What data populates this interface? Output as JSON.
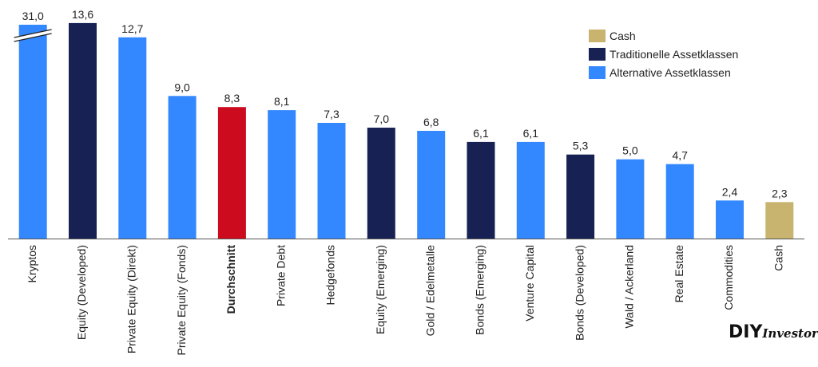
{
  "chart_data": {
    "type": "bar",
    "title": "",
    "xlabel": "",
    "ylabel": "",
    "ylim": [
      0,
      14.3
    ],
    "axis_break_on": "Kryptos",
    "categories": [
      "Kryptos",
      "Equity (Developed)",
      "Private Equity (Direkt)",
      "Private Equity (Fonds)",
      "Durchschnitt",
      "Private Debt",
      "Hedgefonds",
      "Equity (Emerging)",
      "Gold / Edelmetalle",
      "Bonds (Emerging)",
      "Venture Capital",
      "Bonds (Developed)",
      "Wald / Ackerland",
      "Real Estate",
      "Commodities",
      "Cash"
    ],
    "values": [
      31.0,
      13.6,
      12.7,
      9.0,
      8.3,
      8.1,
      7.3,
      7.0,
      6.8,
      6.1,
      6.1,
      5.3,
      5.0,
      4.7,
      2.4,
      2.3
    ],
    "value_labels": [
      "31,0",
      "13,6",
      "12,7",
      "9,0",
      "8,3",
      "8,1",
      "7,3",
      "7,0",
      "6,8",
      "6,1",
      "6,1",
      "5,3",
      "5,0",
      "4,7",
      "2,4",
      "2,3"
    ],
    "bar_groups": [
      "alt",
      "trad",
      "alt",
      "alt",
      "avg",
      "alt",
      "alt",
      "trad",
      "alt",
      "trad",
      "alt",
      "trad",
      "alt",
      "alt",
      "alt",
      "cash"
    ],
    "bold_categories": [
      "Durchschnitt"
    ],
    "legend": {
      "position": "top-right",
      "entries": [
        {
          "key": "cash",
          "label": "Cash",
          "color": "#c8b46e"
        },
        {
          "key": "trad",
          "label": "Traditionelle Assetklassen",
          "color": "#172153"
        },
        {
          "key": "alt",
          "label": "Alternative Assetklassen",
          "color": "#3388ff"
        }
      ]
    },
    "colors": {
      "alt": "#3388ff",
      "trad": "#172153",
      "avg": "#cc0b1e",
      "cash": "#c8b46e"
    },
    "grid": false
  },
  "logo": {
    "brand_main": "DIY",
    "brand_sub": "Investor"
  }
}
